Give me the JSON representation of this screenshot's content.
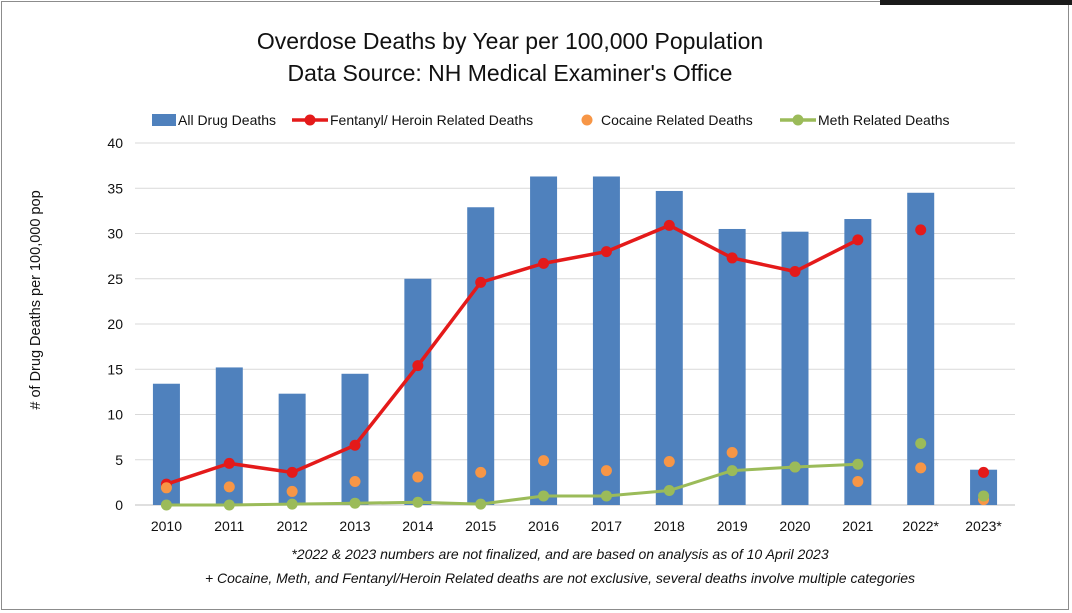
{
  "chart_data": {
    "type": "bar",
    "title": "Overdose Deaths by Year per 100,000 Population",
    "subtitle": "Data Source: NH Medical Examiner's Office",
    "xlabel": "",
    "ylabel": "# of Drug Deaths per 100,000 pop",
    "ylim": [
      0,
      40
    ],
    "yticks": [
      0,
      5,
      10,
      15,
      20,
      25,
      30,
      35,
      40
    ],
    "grid": true,
    "legend_position": "top",
    "categories": [
      "2010",
      "2011",
      "2012",
      "2013",
      "2014",
      "2015",
      "2016",
      "2017",
      "2018",
      "2019",
      "2020",
      "2021",
      "2022*",
      "2023*"
    ],
    "series": [
      {
        "name": "All Drug Deaths",
        "kind": "bar",
        "color": "#4f81bd",
        "values": [
          13.4,
          15.2,
          12.3,
          14.5,
          25.0,
          32.9,
          36.3,
          36.3,
          34.7,
          30.5,
          30.2,
          31.6,
          34.5,
          3.9
        ]
      },
      {
        "name": "Fentanyl/ Heroin Related Deaths",
        "kind": "line-dot",
        "color": "#e41a1a",
        "values": [
          2.3,
          4.6,
          3.6,
          6.6,
          15.4,
          24.6,
          26.7,
          28.0,
          30.9,
          27.3,
          25.8,
          29.3,
          30.4,
          3.6
        ],
        "line_segment_count": 12
      },
      {
        "name": "Cocaine Related Deaths",
        "kind": "dot",
        "color": "#f79646",
        "values": [
          1.9,
          2.0,
          1.5,
          2.6,
          3.1,
          3.6,
          4.9,
          3.8,
          4.8,
          5.8,
          4.2,
          2.6,
          4.1,
          0.6
        ]
      },
      {
        "name": "Meth Related Deaths",
        "kind": "line-dot",
        "color": "#9bbb59",
        "values": [
          0.0,
          0.0,
          0.1,
          0.2,
          0.3,
          0.1,
          1.0,
          1.0,
          1.6,
          3.8,
          4.2,
          4.5,
          6.8,
          1.0
        ],
        "line_segment_count": 12
      }
    ],
    "notes": [
      "*2022 & 2023 numbers are not finalized, and are based on analysis as of 10 April 2023",
      "+ Cocaine, Meth, and Fentanyl/Heroin Related deaths are not exclusive, several deaths involve multiple categories"
    ]
  }
}
